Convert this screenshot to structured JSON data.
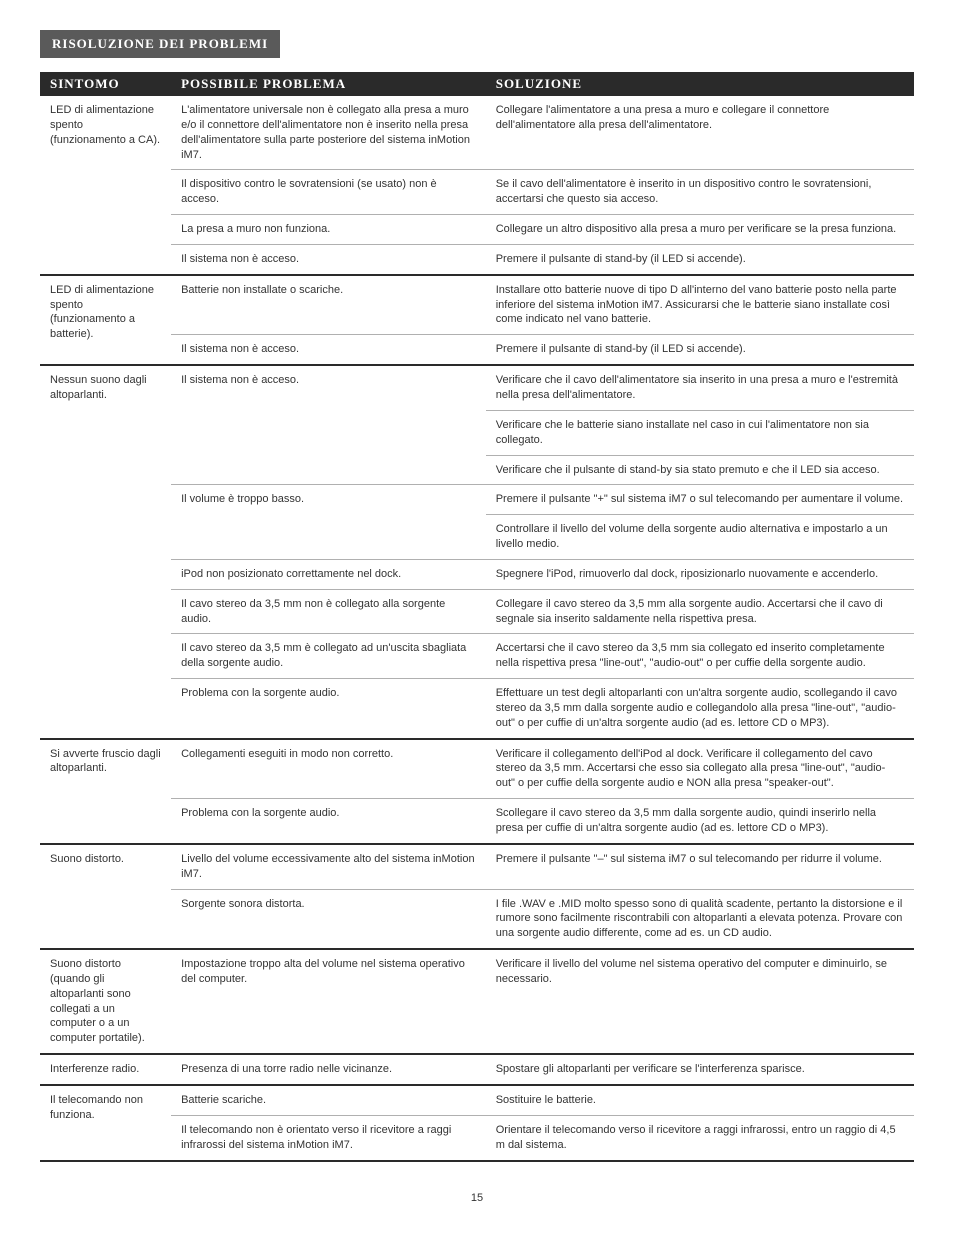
{
  "section_title": "Risoluzione dei problemi",
  "page_number": "15",
  "table": {
    "headers": {
      "symptom": "Sintomo",
      "problem": "Possibile problema",
      "solution": "Soluzione"
    },
    "groups": [
      {
        "symptom": "LED di alimentazione spento (funzionamento a CA).",
        "rows": [
          {
            "problem": "L'alimentatore universale non è collegato alla presa a muro e/o il connettore dell'alimentatore non è inserito nella presa dell'alimentatore sulla parte posteriore del sistema inMotion iM7.",
            "solution": "Collegare l'alimentatore a una presa a muro e collegare il connettore dell'alimentatore alla presa dell'alimentatore."
          },
          {
            "problem": "Il dispositivo contro le sovratensioni (se usato) non è acceso.",
            "solution": "Se il cavo dell'alimentatore è inserito in un dispositivo contro le sovratensioni, accertarsi che questo sia acceso."
          },
          {
            "problem": "La presa a muro non funziona.",
            "solution": "Collegare un altro dispositivo alla presa a muro per verificare se la presa funziona."
          },
          {
            "problem": "Il sistema non è acceso.",
            "solution": "Premere il pulsante di stand-by (il LED si accende)."
          }
        ]
      },
      {
        "symptom": "LED di alimentazione spento (funzionamento a batterie).",
        "rows": [
          {
            "problem": "Batterie non installate o scariche.",
            "solution": "Installare otto batterie nuove di tipo D all'interno del vano batterie posto nella parte inferiore del sistema inMotion iM7. Assicurarsi che le batterie siano installate così come indicato nel vano batterie."
          },
          {
            "problem": "Il sistema non è acceso.",
            "solution": "Premere il pulsante di stand-by (il LED si accende)."
          }
        ]
      },
      {
        "symptom": "Nessun suono dagli altoparlanti.",
        "rows": [
          {
            "problem": "Il sistema non è acceso.",
            "solution": "Verificare che il cavo dell'alimentatore sia inserito in una presa a muro e l'estremità nella presa dell'alimentatore."
          },
          {
            "problem": "",
            "solution": "Verificare che le batterie siano installate nel caso in cui l'alimentatore non sia collegato."
          },
          {
            "problem": "",
            "solution": "Verificare che il pulsante di stand-by sia stato premuto e che il LED sia acceso."
          },
          {
            "problem": "Il volume è troppo basso.",
            "solution": "Premere il pulsante \"+\" sul sistema iM7 o sul telecomando per aumentare il volume."
          },
          {
            "problem": "",
            "solution": "Controllare il livello del volume della sorgente audio alternativa e impostarlo a un livello medio."
          },
          {
            "problem": "iPod non posizionato correttamente nel dock.",
            "solution": "Spegnere l'iPod, rimuoverlo dal dock, riposizionarlo nuovamente e accenderlo."
          },
          {
            "problem": "Il cavo stereo da 3,5 mm non è collegato alla sorgente audio.",
            "solution": "Collegare il cavo stereo da 3,5 mm alla sorgente audio. Accertarsi che il cavo di segnale sia inserito saldamente nella rispettiva presa."
          },
          {
            "problem": "Il cavo stereo da 3,5 mm è collegato ad un'uscita sbagliata della sorgente audio.",
            "solution": "Accertarsi che il cavo stereo da 3,5 mm sia collegato ed inserito completamente nella rispettiva presa \"line-out\", \"audio-out\" o per cuffie della sorgente audio."
          },
          {
            "problem": "Problema con la sorgente audio.",
            "solution": "Effettuare un test degli altoparlanti con un'altra sorgente audio, scollegando il cavo stereo da 3,5 mm dalla sorgente audio e collegandolo alla presa \"line-out\", \"audio-out\" o per cuffie di un'altra sorgente audio (ad es. lettore CD o MP3)."
          }
        ]
      },
      {
        "symptom": "Si avverte fruscio dagli altoparlanti.",
        "rows": [
          {
            "problem": "Collegamenti eseguiti in modo non corretto.",
            "solution": "Verificare il collegamento dell'iPod al dock. Verificare il collegamento del cavo stereo da 3,5 mm. Accertarsi che esso sia collegato alla presa \"line-out\", \"audio-out\" o per cuffie della sorgente audio e NON alla presa \"speaker-out\"."
          },
          {
            "problem": "Problema con la sorgente audio.",
            "solution": "Scollegare il cavo stereo da 3,5 mm dalla sorgente audio, quindi inserirlo nella presa per cuffie di un'altra sorgente audio (ad es. lettore CD o MP3)."
          }
        ]
      },
      {
        "symptom": "Suono distorto.",
        "rows": [
          {
            "problem": "Livello del volume eccessivamente alto del sistema inMotion iM7.",
            "solution": "Premere il pulsante \"–\" sul sistema iM7 o sul telecomando per ridurre il volume."
          },
          {
            "problem": "Sorgente sonora distorta.",
            "solution": "I file .WAV e .MID molto spesso sono di qualità scadente, pertanto la distorsione e il rumore sono facilmente riscontrabili con altoparlanti a elevata potenza. Provare con una sorgente audio differente, come ad es. un CD audio."
          }
        ]
      },
      {
        "symptom": "Suono distorto (quando gli altoparlanti sono collegati a un computer o a un computer portatile).",
        "rows": [
          {
            "problem": "Impostazione troppo alta del volume nel sistema operativo del computer.",
            "solution": "Verificare il livello del volume nel sistema operativo del computer e diminuirlo, se necessario."
          }
        ]
      },
      {
        "symptom": "Interferenze radio.",
        "rows": [
          {
            "problem": "Presenza di una torre radio nelle vicinanze.",
            "solution": "Spostare gli altoparlanti per verificare se l'interferenza sparisce."
          }
        ]
      },
      {
        "symptom": "Il telecomando non funziona.",
        "rows": [
          {
            "problem": "Batterie scariche.",
            "solution": "Sostituire le batterie."
          },
          {
            "problem": "Il telecomando non è orientato verso il ricevitore a raggi infrarossi del sistema inMotion iM7.",
            "solution": "Orientare il telecomando verso il ricevitore a raggi infrarossi, entro un raggio di 4,5 m dal sistema."
          }
        ]
      }
    ]
  }
}
